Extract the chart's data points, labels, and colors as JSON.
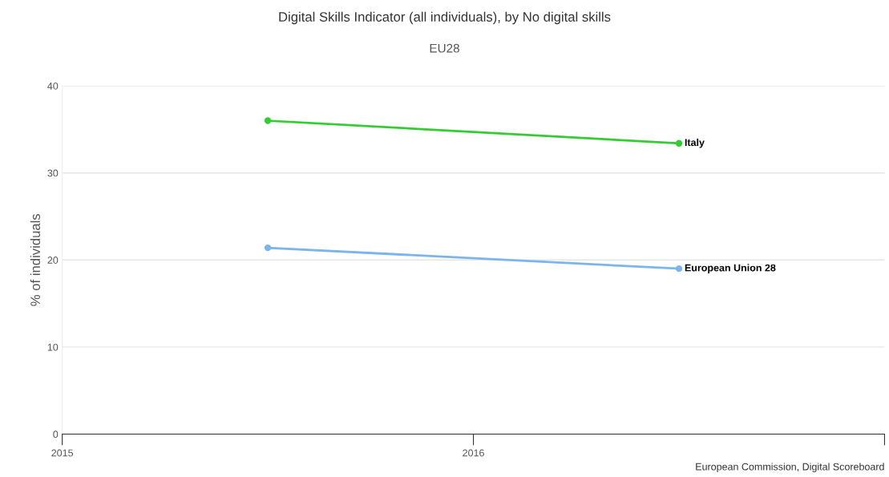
{
  "chart_data": {
    "type": "line",
    "title": "Digital Skills Indicator (all individuals), by No digital skills",
    "subtitle": "EU28",
    "ylabel": "% of individuals",
    "x": [
      2015.5,
      2016.5
    ],
    "series": [
      {
        "name": "Italy",
        "color": "#33cc33",
        "values": [
          36.0,
          33.4
        ]
      },
      {
        "name": "European Union 28",
        "color": "#7cb5ec",
        "values": [
          21.4,
          19.0
        ]
      }
    ],
    "xlim": [
      2015,
      2017
    ],
    "xticks": [
      2015,
      2016,
      {
        "value": 2017,
        "label": null
      }
    ],
    "ylim": [
      0,
      40
    ],
    "yticks": [
      0,
      10,
      20,
      30,
      40
    ],
    "grid": "y",
    "marker": "circle",
    "legend": false,
    "annotations": [
      "European Commission, Digital Scoreboard"
    ]
  }
}
